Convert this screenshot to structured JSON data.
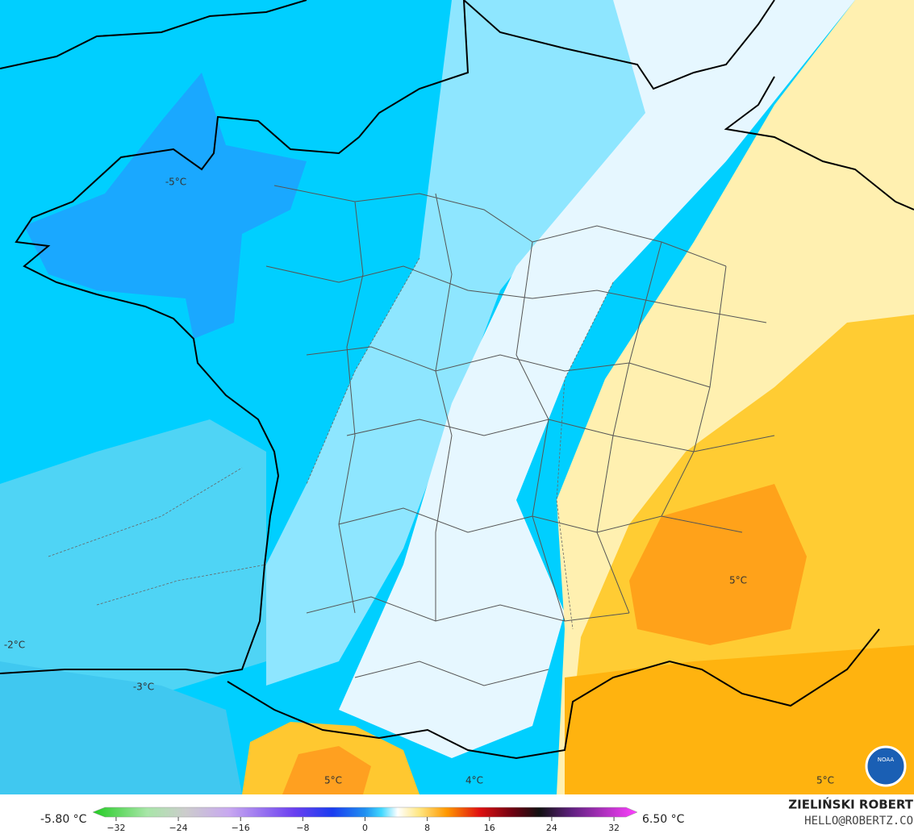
{
  "map": {
    "labels": [
      "-5°C",
      "5°C",
      "5°C",
      "4°C",
      "5°C",
      "-2°C",
      "-3°C"
    ]
  },
  "colorbar": {
    "min_label": "-5.80 °C",
    "max_label": "6.50 °C",
    "lim": [
      -35,
      35
    ],
    "ticks": [
      {
        "value": -32,
        "label": "−32"
      },
      {
        "value": -24,
        "label": "−24"
      },
      {
        "value": -16,
        "label": "−16"
      },
      {
        "value": -8,
        "label": "−8"
      },
      0,
      8,
      16,
      24,
      32
    ]
  },
  "credit": {
    "author": "ZIELIŃSKI ROBERT",
    "email": "HELLO@ROBERTZ.CO",
    "logo": "NOAA"
  }
}
